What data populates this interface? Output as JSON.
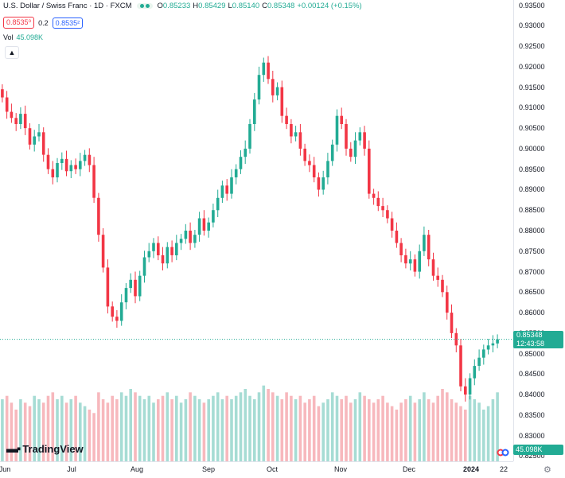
{
  "legend": {
    "symbol": "U.S. Dollar / Swiss Franc · 1D · FXCM",
    "open_label": "O",
    "open": "0.85233",
    "high_label": "H",
    "high": "0.85429",
    "low_label": "L",
    "low": "0.85140",
    "close_label": "C",
    "close": "0.85348",
    "change": "+0.00124 (+0.15%)"
  },
  "prices": {
    "sell": "0.8535⁰",
    "spread": "0.2",
    "buy": "0.8535²"
  },
  "volume": {
    "label": "Vol",
    "value": "45.098K"
  },
  "current_price": {
    "price": "0.85348",
    "countdown": "12:43:58"
  },
  "volume_badge": "45.098K",
  "logo_text": "TradingView",
  "colors": {
    "up": "#22ab94",
    "down": "#f23645",
    "vol_up": "#a6dcd4",
    "vol_down": "#f7b8bd"
  },
  "chart_data": {
    "type": "candlestick",
    "y_ticks": [
      "0.93500",
      "0.93000",
      "0.92500",
      "0.92000",
      "0.91500",
      "0.91000",
      "0.90500",
      "0.90000",
      "0.89500",
      "0.89000",
      "0.88500",
      "0.88000",
      "0.87500",
      "0.87000",
      "0.86500",
      "0.86000",
      "0.85500",
      "0.85000",
      "0.84500",
      "0.84000",
      "0.83500",
      "0.83000",
      "0.82500"
    ],
    "x_labels": [
      "Jun",
      "Jul",
      "Aug",
      "Sep",
      "Oct",
      "Nov",
      "Dec",
      "2024",
      "22"
    ],
    "ylim": [
      0.8245,
      0.9355
    ],
    "series": [
      {
        "name": "price",
        "values": [
          0.9125,
          0.909,
          0.9075,
          0.906,
          0.9085,
          0.905,
          0.901,
          0.903,
          0.904,
          0.8985,
          0.895,
          0.893,
          0.8965,
          0.8975,
          0.8945,
          0.896,
          0.895,
          0.897,
          0.8985,
          0.896,
          0.888,
          0.879,
          0.871,
          0.8615,
          0.859,
          0.858,
          0.8625,
          0.866,
          0.868,
          0.864,
          0.869,
          0.8735,
          0.875,
          0.877,
          0.874,
          0.872,
          0.876,
          0.874,
          0.877,
          0.878,
          0.88,
          0.877,
          0.879,
          0.883,
          0.88,
          0.882,
          0.885,
          0.888,
          0.891,
          0.889,
          0.893,
          0.895,
          0.898,
          0.9,
          0.906,
          0.912,
          0.918,
          0.921,
          0.917,
          0.913,
          0.915,
          0.908,
          0.906,
          0.903,
          0.904,
          0.9,
          0.897,
          0.896,
          0.893,
          0.89,
          0.893,
          0.897,
          0.901,
          0.908,
          0.906,
          0.9,
          0.898,
          0.902,
          0.904,
          0.9,
          0.889,
          0.888,
          0.886,
          0.885,
          0.883,
          0.88,
          0.877,
          0.874,
          0.872,
          0.873,
          0.87,
          0.875,
          0.879,
          0.873,
          0.869,
          0.868,
          0.865,
          0.86,
          0.855,
          0.852,
          0.842,
          0.84,
          0.844,
          0.847,
          0.849,
          0.851,
          0.852,
          0.8525,
          0.8535
        ]
      },
      {
        "name": "volume",
        "values": [
          36,
          38,
          34,
          30,
          36,
          34,
          32,
          38,
          36,
          34,
          38,
          40,
          36,
          38,
          34,
          36,
          38,
          34,
          32,
          30,
          28,
          40,
          36,
          34,
          38,
          36,
          40,
          38,
          42,
          40,
          38,
          36,
          38,
          34,
          36,
          38,
          40,
          36,
          38,
          34,
          36,
          40,
          38,
          36,
          34,
          36,
          38,
          40,
          36,
          38,
          36,
          38,
          40,
          42,
          38,
          36,
          40,
          44,
          42,
          40,
          38,
          36,
          40,
          38,
          36,
          38,
          34,
          36,
          38,
          32,
          34,
          36,
          40,
          38,
          36,
          38,
          34,
          36,
          40,
          38,
          36,
          34,
          36,
          38,
          34,
          32,
          30,
          34,
          36,
          38,
          34,
          36,
          40,
          36,
          34,
          38,
          42,
          40,
          36,
          34,
          32,
          30,
          38,
          36,
          34,
          30,
          32,
          36,
          40
        ]
      }
    ]
  }
}
